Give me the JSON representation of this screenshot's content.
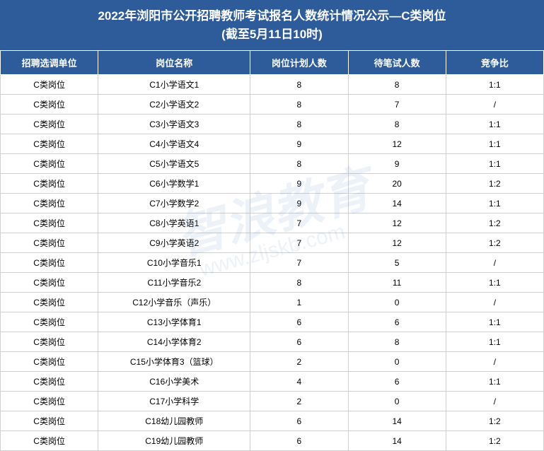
{
  "title": {
    "line1": "2022年浏阳市公开招聘教师考试报名人数统计情况公示—C类岗位",
    "line2": "(截至5月11日10时)"
  },
  "table": {
    "columns": [
      "招聘选调单位",
      "岗位名称",
      "岗位计划人数",
      "待笔试人数",
      "竞争比"
    ],
    "column_widths": [
      "18%",
      "28%",
      "18%",
      "18%",
      "18%"
    ],
    "header_bg": "#2e5c9a",
    "header_fg": "#ffffff",
    "cell_bg": "#ffffff",
    "cell_fg": "#000000",
    "border_color": "#d0d0d0",
    "rows": [
      [
        "C类岗位",
        "C1小学语文1",
        "8",
        "8",
        "1:1"
      ],
      [
        "C类岗位",
        "C2小学语文2",
        "8",
        "7",
        "/"
      ],
      [
        "C类岗位",
        "C3小学语文3",
        "8",
        "8",
        "1:1"
      ],
      [
        "C类岗位",
        "C4小学语文4",
        "9",
        "12",
        "1:1"
      ],
      [
        "C类岗位",
        "C5小学语文5",
        "8",
        "9",
        "1:1"
      ],
      [
        "C类岗位",
        "C6小学数学1",
        "9",
        "20",
        "1:2"
      ],
      [
        "C类岗位",
        "C7小学数学2",
        "9",
        "14",
        "1:1"
      ],
      [
        "C类岗位",
        "C8小学英语1",
        "7",
        "12",
        "1:2"
      ],
      [
        "C类岗位",
        "C9小学英语2",
        "7",
        "12",
        "1:2"
      ],
      [
        "C类岗位",
        "C10小学音乐1",
        "7",
        "5",
        "/"
      ],
      [
        "C类岗位",
        "C11小学音乐2",
        "8",
        "11",
        "1:1"
      ],
      [
        "C类岗位",
        "C12小学音乐（声乐）",
        "1",
        "0",
        "/"
      ],
      [
        "C类岗位",
        "C13小学体育1",
        "6",
        "6",
        "1:1"
      ],
      [
        "C类岗位",
        "C14小学体育2",
        "6",
        "8",
        "1:1"
      ],
      [
        "C类岗位",
        "C15小学体育3（篮球）",
        "2",
        "0",
        "/"
      ],
      [
        "C类岗位",
        "C16小学美术",
        "4",
        "6",
        "1:1"
      ],
      [
        "C类岗位",
        "C17小学科学",
        "2",
        "0",
        "/"
      ],
      [
        "C类岗位",
        "C18幼儿园教师",
        "6",
        "14",
        "1:2"
      ],
      [
        "C类岗位",
        "C19幼儿园教师",
        "6",
        "14",
        "1:2"
      ]
    ]
  },
  "watermark": {
    "main": "智浪教育",
    "sub": "www.zljskb.com",
    "color": "rgba(100, 150, 200, 0.12)"
  },
  "styling": {
    "title_bg": "#2e5c9a",
    "title_fg": "#ffffff",
    "title_fontsize": 17,
    "body_fontsize": 12,
    "header_fontsize": 13
  }
}
